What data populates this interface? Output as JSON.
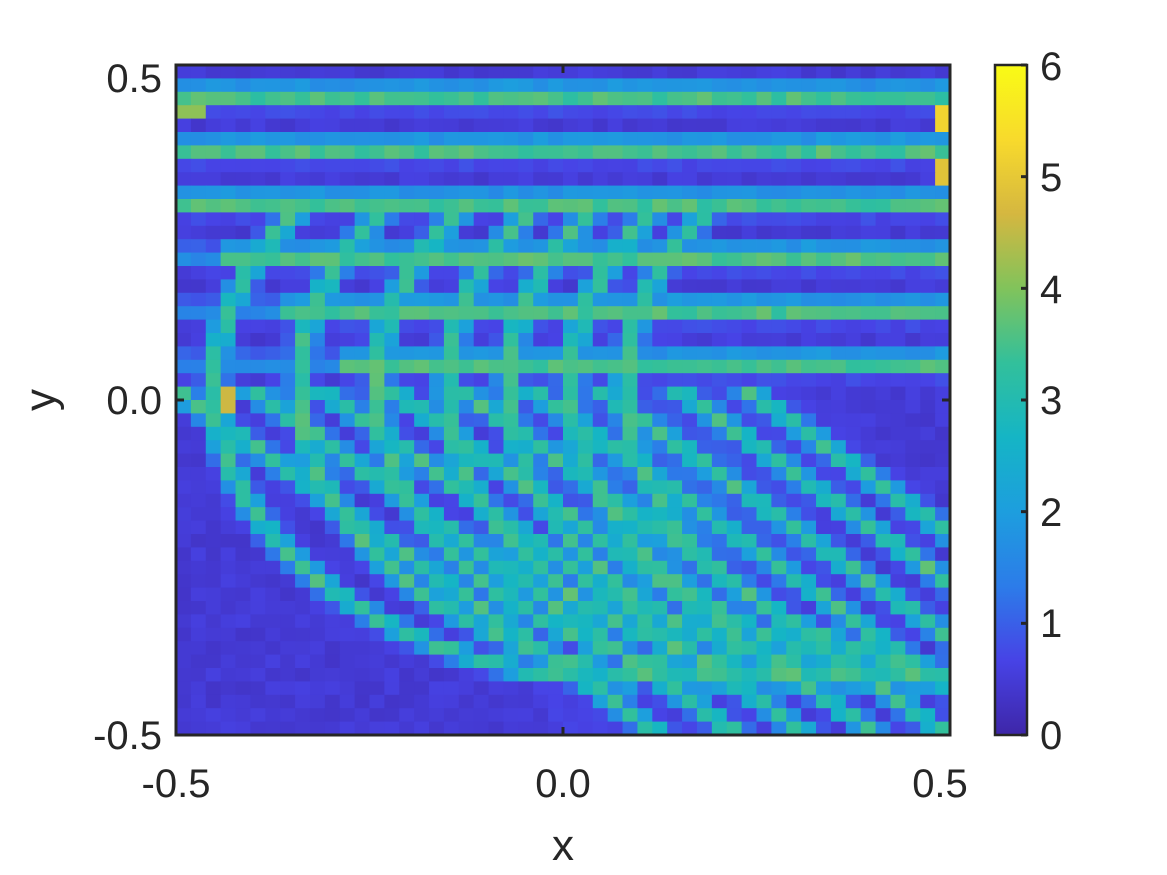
{
  "chart_data": {
    "type": "heatmap",
    "title": "",
    "xlabel": "x",
    "ylabel": "y",
    "xlim": [
      -0.5,
      0.5
    ],
    "ylim": [
      -0.5,
      0.5
    ],
    "x_ticks": [
      -0.5,
      0.0,
      0.5
    ],
    "x_tick_labels": [
      "-0.5",
      "0.0",
      "0.5"
    ],
    "y_ticks": [
      -0.5,
      0.0,
      0.5
    ],
    "y_tick_labels": [
      "-0.5",
      "0.0",
      "0.5"
    ],
    "colorbar": {
      "colormap": "parula",
      "clim": [
        0,
        6
      ],
      "ticks": [
        0,
        1,
        2,
        3,
        4,
        5,
        6
      ],
      "tick_labels": [
        "0",
        "1",
        "2",
        "3",
        "4",
        "5",
        "6"
      ],
      "colors": [
        "#3e26a8",
        "#4743e6",
        "#2c7ce9",
        "#1d9ede",
        "#15b5c5",
        "#32c09b",
        "#81c35b",
        "#d5b740",
        "#f8da2c",
        "#f9fb15"
      ]
    },
    "grid": false,
    "legend": "none",
    "grid_size": [
      52,
      50
    ],
    "description_of_field": "magnitude values 0–6; background near 0.3, bright stripes ~2.5–4, peaks ~5 near right edge",
    "stripes": {
      "horizontal_y": [
        0.455,
        0.375,
        0.295,
        0.215,
        0.135,
        0.055
      ],
      "curved_centers_x": [
        -0.45,
        -0.34,
        -0.24,
        -0.15,
        -0.07,
        0.01,
        0.08
      ],
      "diagonal_offsets": [
        -0.46,
        -0.36,
        -0.27,
        -0.18,
        -0.09,
        0.0,
        0.09,
        0.19,
        0.28
      ]
    },
    "hotspots": [
      {
        "x": 0.495,
        "y": 0.42,
        "value": 5.2
      },
      {
        "x": 0.495,
        "y": 0.34,
        "value": 4.9
      },
      {
        "x": -0.435,
        "y": 0.0,
        "value": 4.6
      },
      {
        "x": -0.48,
        "y": 0.43,
        "value": 4.1
      }
    ]
  }
}
